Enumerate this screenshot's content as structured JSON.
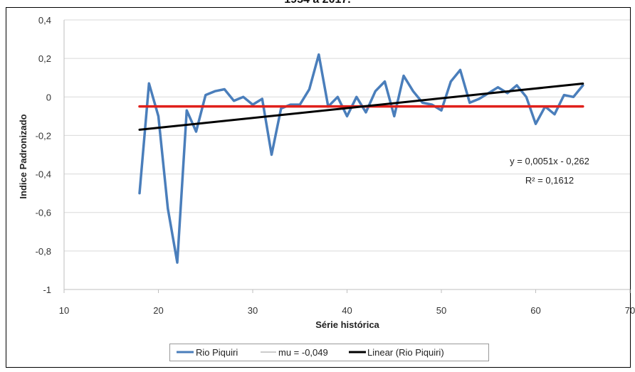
{
  "chart_data": {
    "type": "line",
    "title": "1954 a 2017.",
    "xlabel": "Série histórica",
    "ylabel": "Indice Padronizado",
    "xlim": [
      10,
      70
    ],
    "ylim": [
      -1,
      0.4
    ],
    "x_ticks": [
      10,
      20,
      30,
      40,
      50,
      60,
      70
    ],
    "x_tick_labels": [
      "10",
      "20",
      "30",
      "40",
      "50",
      "60",
      "70"
    ],
    "y_ticks": [
      -1,
      -0.8,
      -0.6,
      -0.4,
      -0.2,
      0,
      0.2,
      0.4
    ],
    "y_tick_labels": [
      "-1",
      "-0,8",
      "-0,6",
      "-0,4",
      "-0,2",
      "0",
      "0,2",
      "0,4"
    ],
    "grid": "horizontal",
    "legend_position": "bottom",
    "series": [
      {
        "name": "Rio Piquiri",
        "color": "#4a7ebb",
        "style": "line",
        "x": [
          18,
          19,
          20,
          21,
          22,
          23,
          24,
          25,
          26,
          27,
          28,
          29,
          30,
          31,
          32,
          33,
          34,
          35,
          36,
          37,
          38,
          39,
          40,
          41,
          42,
          43,
          44,
          45,
          46,
          47,
          48,
          49,
          50,
          51,
          52,
          53,
          54,
          55,
          56,
          57,
          58,
          59,
          60,
          61,
          62,
          63,
          64,
          65
        ],
        "y": [
          -0.5,
          0.07,
          -0.1,
          -0.58,
          -0.86,
          -0.07,
          -0.18,
          0.01,
          0.03,
          0.04,
          -0.02,
          0.0,
          -0.04,
          -0.01,
          -0.3,
          -0.06,
          -0.04,
          -0.04,
          0.04,
          0.22,
          -0.05,
          0.0,
          -0.1,
          0.0,
          -0.08,
          0.03,
          0.08,
          -0.1,
          0.11,
          0.03,
          -0.03,
          -0.04,
          -0.07,
          0.08,
          0.14,
          -0.03,
          -0.01,
          0.02,
          0.05,
          0.02,
          0.06,
          0.0,
          -0.14,
          -0.05,
          -0.09,
          0.01,
          0.0,
          0.06
        ]
      },
      {
        "name": "mu = -0,049",
        "color": "#e0201b",
        "style": "hline",
        "x": [
          18,
          65
        ],
        "y": [
          -0.049,
          -0.049
        ]
      },
      {
        "name": "Linear (Rio Piquiri)",
        "color": "#000000",
        "style": "trendline",
        "x": [
          18,
          65
        ],
        "y": [
          -0.1702,
          0.0695
        ]
      }
    ],
    "annotations": [
      {
        "text": "y = 0,0051x - 0,262"
      },
      {
        "text": "R² = 0,1612"
      }
    ]
  }
}
